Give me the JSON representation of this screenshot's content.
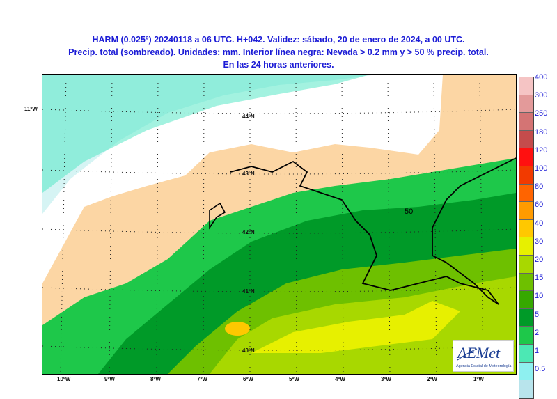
{
  "header": {
    "line1": "HARM (0.025º) 20240118 a 06 UTC. H+042. Validez: sábado, 20 de enero de 2024, a 00 UTC.",
    "line2": "Precip. total (sombreado). Unidades: mm. Interior línea negra: Nevada > 0.2 mm y > 50 % precip. total.",
    "line3": "En las 24 horas anteriores."
  },
  "map": {
    "lon_labels": [
      "10ºW",
      "9ºW",
      "8ºW",
      "7ºW",
      "6ºW",
      "5ºW",
      "4ºW",
      "3ºW",
      "2ºW",
      "1ºW"
    ],
    "left_label": "11ºW",
    "lat_labels": [
      "44ºN",
      "43ºN",
      "42ºN",
      "41ºN",
      "40ºN"
    ],
    "contour_label": "50"
  },
  "colorbar": {
    "ticks": [
      "400",
      "300",
      "250",
      "180",
      "120",
      "100",
      "80",
      "60",
      "40",
      "30",
      "20",
      "15",
      "10",
      "5",
      "2",
      "1",
      "0.5"
    ],
    "colors": [
      "#f5c4c4",
      "#e39a9a",
      "#d47474",
      "#c44c4c",
      "#ff1010",
      "#f23a00",
      "#ff6400",
      "#ff9b00",
      "#ffc800",
      "#e7f000",
      "#a8d800",
      "#6ec000",
      "#36a800",
      "#009a28",
      "#1ec84a",
      "#4ce8b4",
      "#8ef0f0",
      "#b8e4ec"
    ]
  },
  "logo": {
    "name": "AEMet",
    "subtitle": "Agencia Estatal de Meteorología"
  }
}
